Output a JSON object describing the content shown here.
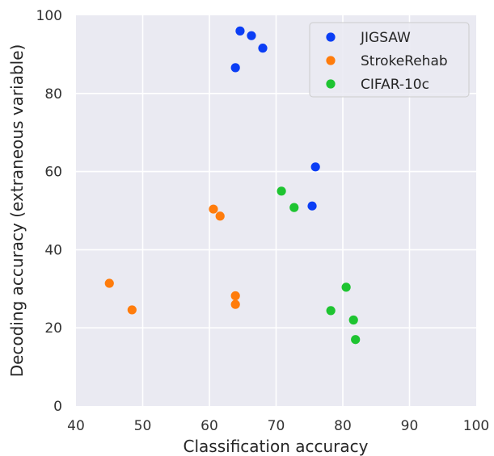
{
  "chart_data": {
    "type": "scatter",
    "title": "",
    "xlabel": "Classification accuracy",
    "ylabel": "Decoding accuracy (extraneous variable)",
    "xlim": [
      40,
      100
    ],
    "ylim": [
      0,
      100
    ],
    "xticks": [
      40,
      50,
      60,
      70,
      80,
      90,
      100
    ],
    "yticks": [
      0,
      20,
      40,
      60,
      80,
      100
    ],
    "grid": true,
    "legend_position": "top-right",
    "series": [
      {
        "name": "JIGSAW",
        "color": "#0b3ef5",
        "points": [
          {
            "x": 64.6,
            "y": 96.0
          },
          {
            "x": 66.3,
            "y": 94.8
          },
          {
            "x": 68.0,
            "y": 91.6
          },
          {
            "x": 63.9,
            "y": 86.6
          },
          {
            "x": 75.9,
            "y": 61.2
          },
          {
            "x": 75.4,
            "y": 51.2
          }
        ]
      },
      {
        "name": "StrokeRehab",
        "color": "#ff7c0c",
        "points": [
          {
            "x": 60.6,
            "y": 50.4
          },
          {
            "x": 61.6,
            "y": 48.6
          },
          {
            "x": 45.0,
            "y": 31.4
          },
          {
            "x": 48.4,
            "y": 24.6
          },
          {
            "x": 63.9,
            "y": 28.2
          },
          {
            "x": 63.9,
            "y": 26.0
          }
        ]
      },
      {
        "name": "CIFAR-10c",
        "color": "#1ec431",
        "points": [
          {
            "x": 70.8,
            "y": 55.0
          },
          {
            "x": 72.7,
            "y": 50.8
          },
          {
            "x": 80.5,
            "y": 30.4
          },
          {
            "x": 78.2,
            "y": 24.4
          },
          {
            "x": 81.6,
            "y": 22.0
          },
          {
            "x": 81.9,
            "y": 17.0
          }
        ]
      }
    ]
  }
}
